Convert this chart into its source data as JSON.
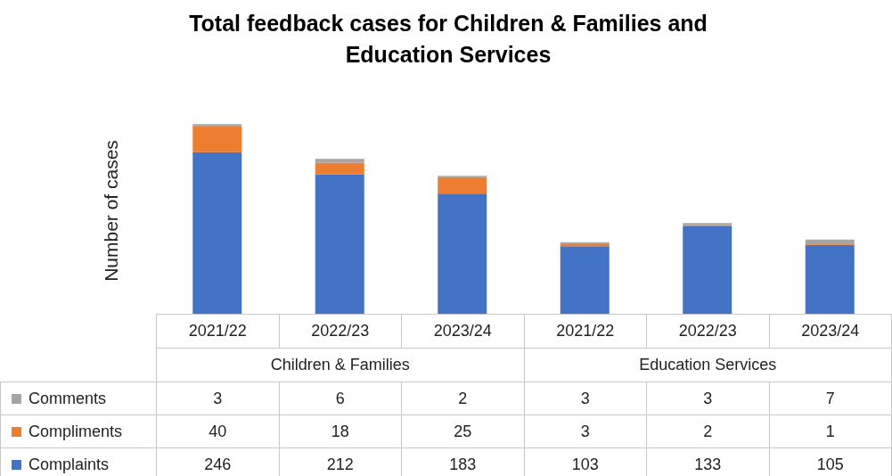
{
  "chart_data": {
    "type": "bar",
    "title": "Total feedback cases for Children & Families and Education Services",
    "ylabel": "Number of cases",
    "categories": [
      "2021/22",
      "2022/23",
      "2023/24",
      "2021/22",
      "2022/23",
      "2023/24"
    ],
    "annotations": [
      "Children & Families",
      "Education Services"
    ],
    "stacked": true,
    "tick_labels": "x",
    "data_labels": true,
    "legend": "bottom",
    "series": [
      {
        "name": "Complaints",
        "color": "#4472c4",
        "values": [
          246,
          212,
          183,
          103,
          133,
          105
        ]
      },
      {
        "name": "Compliments",
        "color": "#ed7d31",
        "values": [
          40,
          18,
          25,
          3,
          2,
          1
        ]
      },
      {
        "name": "Comments",
        "color": "#a5a5a5",
        "values": [
          3,
          6,
          2,
          3,
          3,
          7
        ]
      }
    ]
  }
}
